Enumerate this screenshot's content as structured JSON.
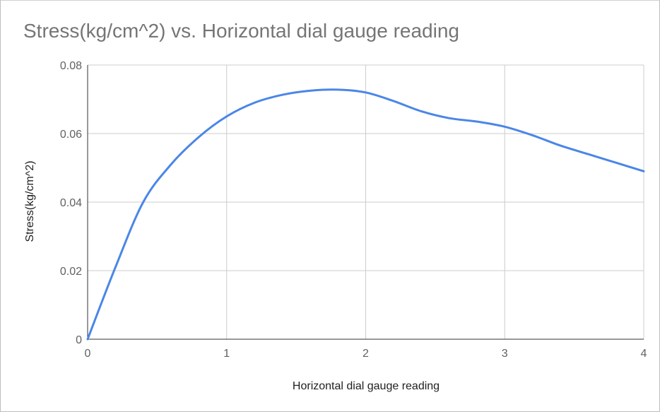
{
  "chart_data": {
    "type": "line",
    "title": "Stress(kg/cm^2) vs. Horizontal dial gauge reading",
    "xlabel": "Horizontal dial gauge reading",
    "ylabel": "Stress(kg/cm^2)",
    "xlim": [
      0,
      4
    ],
    "ylim": [
      0,
      0.08
    ],
    "xticks": [
      "0",
      "1",
      "2",
      "3",
      "4"
    ],
    "yticks": [
      "0",
      "0.02",
      "0.04",
      "0.06",
      "0.08"
    ],
    "grid": true,
    "legend": "none",
    "colors": {
      "series": "#4a86e8",
      "grid": "#cccccc",
      "axis": "#333333"
    },
    "series": [
      {
        "x": [
          0,
          0.2,
          0.4,
          0.6,
          0.8,
          1.0,
          1.2,
          1.4,
          1.6,
          1.8,
          2.0,
          2.2,
          2.4,
          2.6,
          2.8,
          3.0,
          3.2,
          3.4,
          3.6,
          3.8,
          4.0
        ],
        "values": [
          0,
          0.021,
          0.04,
          0.051,
          0.059,
          0.065,
          0.069,
          0.0713,
          0.0725,
          0.0728,
          0.072,
          0.0695,
          0.0665,
          0.0645,
          0.0635,
          0.062,
          0.0595,
          0.0565,
          0.054,
          0.0515,
          0.049
        ]
      }
    ]
  }
}
